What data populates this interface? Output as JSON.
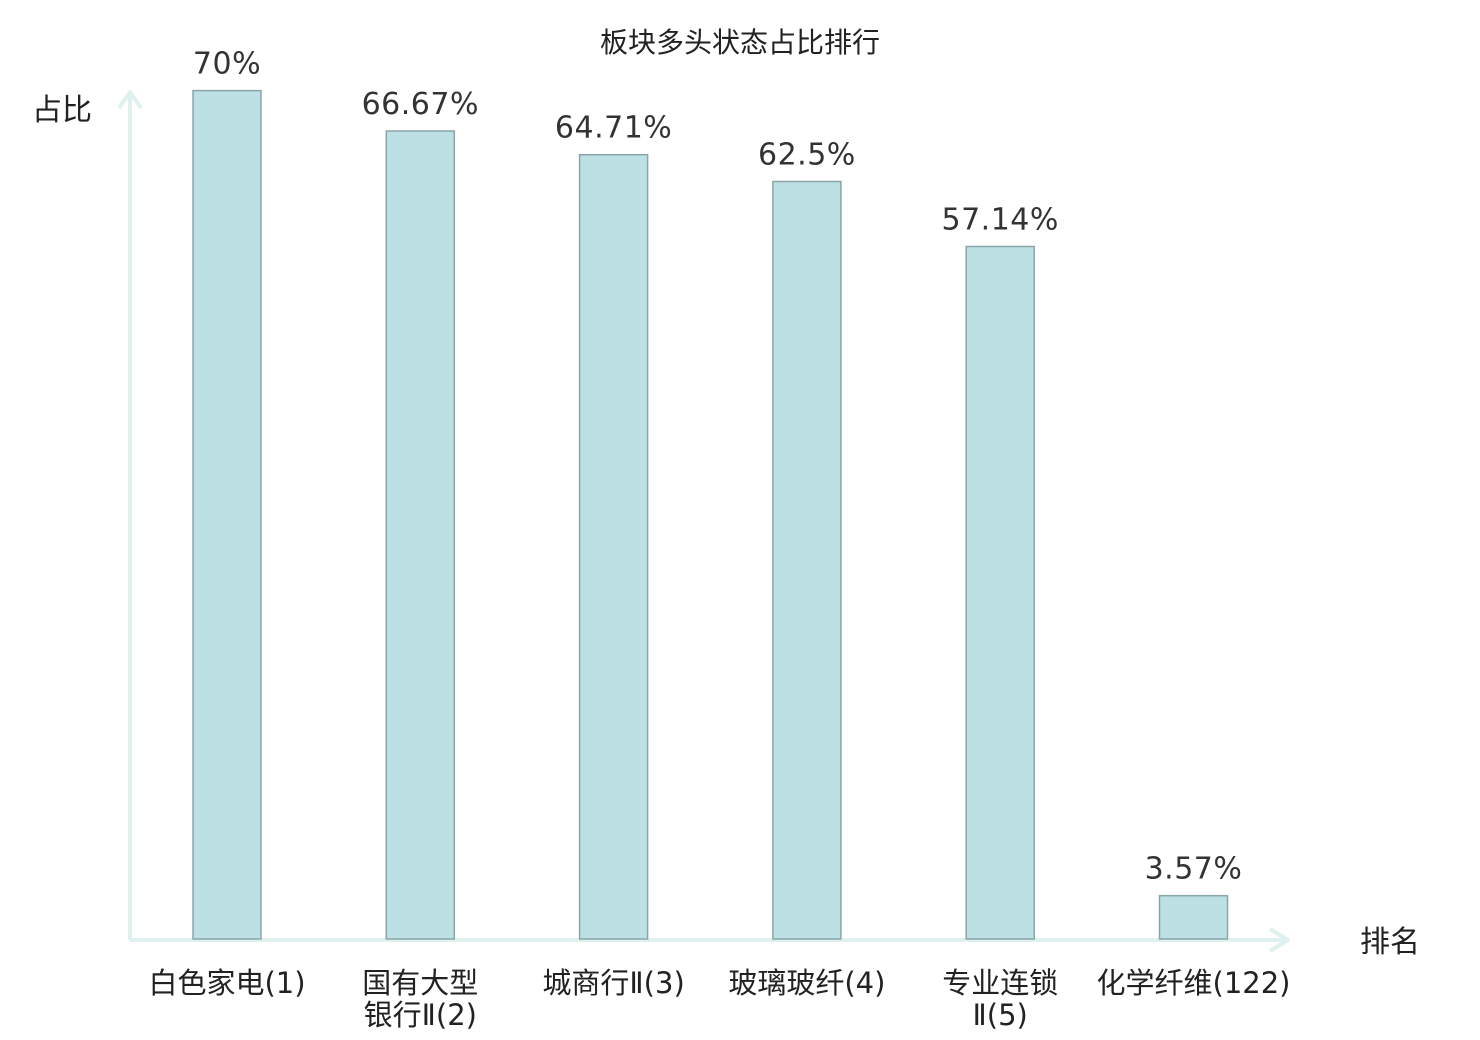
{
  "chart_data": {
    "type": "bar",
    "title": "板块多头状态占比排行",
    "ylabel": "占比",
    "xlabel": "排名",
    "ylim": [
      0,
      100
    ],
    "grid": false,
    "categories": [
      [
        "白色家电(1)"
      ],
      [
        "国有大型",
        "银行Ⅱ(2)"
      ],
      [
        "城商行Ⅱ(3)"
      ],
      [
        "玻璃玻纤(4)"
      ],
      [
        "专业连锁",
        "Ⅱ(5)"
      ],
      [
        "化学纤维(122)"
      ]
    ],
    "values": [
      70,
      66.67,
      64.71,
      62.5,
      57.14,
      3.57
    ],
    "value_labels": [
      "70%",
      "66.67%",
      "64.71%",
      "62.5%",
      "57.14%",
      "3.57%"
    ],
    "highlight_index": 5
  },
  "colors": {
    "bar_fill": "#bce0e3",
    "bar_stroke": "#8aa5a8",
    "axis": "#dff1ee",
    "highlight_label": "#e8000b",
    "text": "#222222"
  }
}
